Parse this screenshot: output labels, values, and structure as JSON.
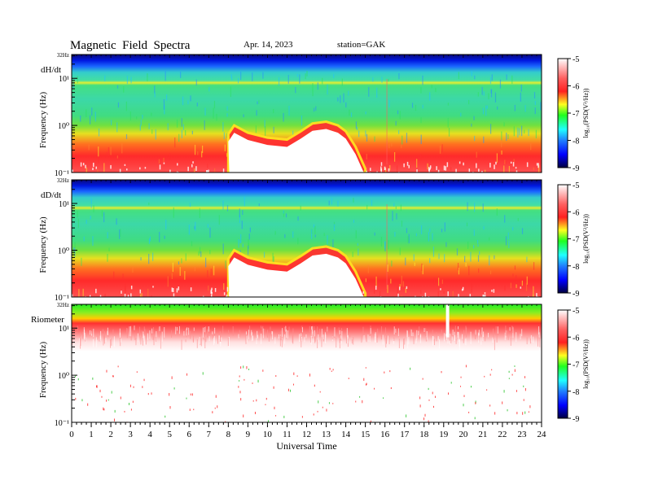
{
  "header": {
    "title": "Magnetic  Field  Spectra",
    "date": "Apr. 14, 2023",
    "station": "station=GAK"
  },
  "chart_data": [
    {
      "type": "heatmap",
      "panel_label": "dH/dt",
      "ylabel": "Frequency  (Hz)",
      "yscale": "log",
      "ylim": [
        0.1,
        32
      ],
      "yticks": [
        "10⁻¹",
        "10⁰",
        "10¹",
        "32Hz"
      ],
      "colorbar": {
        "label": "log₁₀(PSD(V²/Hz))",
        "ticks": [
          "-5",
          "-6",
          "-7",
          "-8",
          "-9"
        ]
      }
    },
    {
      "type": "heatmap",
      "panel_label": "dD/dt",
      "ylabel": "Frequency  (Hz)",
      "yscale": "log",
      "ylim": [
        0.1,
        32
      ],
      "yticks": [
        "10⁻¹",
        "10⁰",
        "10¹",
        "32Hz"
      ],
      "colorbar": {
        "label": "log₁₀(PSD(V²/Hz))",
        "ticks": [
          "-5",
          "-6",
          "-7",
          "-8",
          "-9"
        ]
      }
    },
    {
      "type": "heatmap",
      "panel_label": "Riometer",
      "ylabel": "Frequency  (Hz)",
      "yscale": "log",
      "ylim": [
        0.1,
        32
      ],
      "yticks": [
        "10⁻¹",
        "10⁰",
        "10¹",
        "32Hz"
      ],
      "xlabel": "Universal  Time",
      "xticks": [
        "0",
        "1",
        "2",
        "3",
        "4",
        "5",
        "6",
        "7",
        "8",
        "9",
        "10",
        "11",
        "12",
        "13",
        "14",
        "15",
        "16",
        "17",
        "18",
        "19",
        "20",
        "21",
        "22",
        "23",
        "24"
      ],
      "xlim": [
        0,
        24
      ],
      "colorbar": {
        "label": "log₁₀(PSD(V²/Hz))",
        "ticks": [
          "-5",
          "-6",
          "-7",
          "-8",
          "-9"
        ]
      }
    }
  ]
}
